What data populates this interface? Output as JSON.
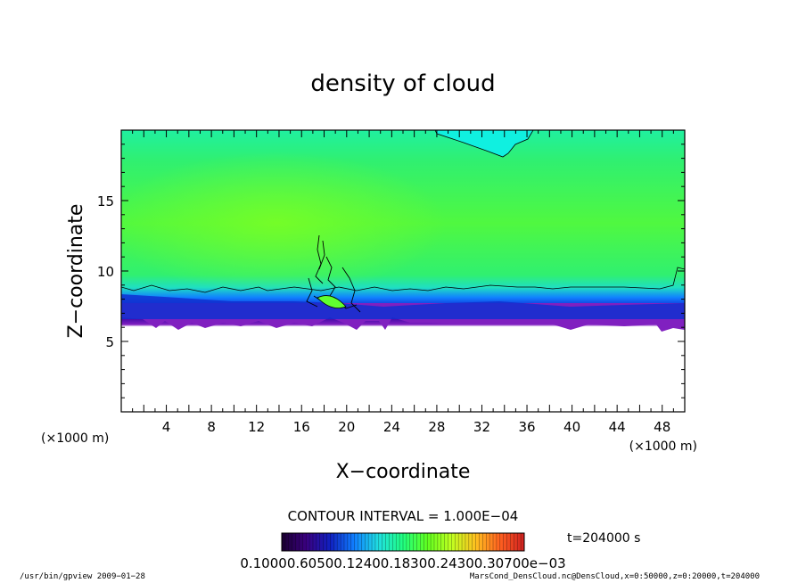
{
  "chart_data": {
    "type": "heatmap",
    "title": "density of cloud",
    "xlabel": "X−coordinate",
    "ylabel": "Z−coordinate",
    "x_unit": "(×1000 m)",
    "y_unit": "(×1000 m)",
    "xlim": [
      0,
      50
    ],
    "ylim": [
      0,
      20
    ],
    "x_ticks": [
      4,
      8,
      12,
      16,
      20,
      24,
      28,
      32,
      36,
      40,
      44,
      48
    ],
    "x_tick_labels": [
      "4",
      "8",
      "12",
      "16",
      "20",
      "24",
      "28",
      "32",
      "36",
      "40",
      "44",
      "48"
    ],
    "y_ticks": [
      5,
      10,
      15
    ],
    "y_tick_labels": [
      "5",
      "10",
      "15"
    ],
    "contour_interval_label": "CONTOUR INTERVAL = 1.000E−04",
    "colorbar_labels": "0.10000.60500.12400.18300.24300.30700e−03",
    "time_label": "t=204000  s",
    "colorbar_colors": [
      "#1a0030",
      "#3a0080",
      "#1020c0",
      "#1080ff",
      "#20e0e0",
      "#20ff80",
      "#60ff20",
      "#c0ff20",
      "#ffc020",
      "#ff6020",
      "#d02020"
    ],
    "field_colors": {
      "cloud_top_cyan": "#10f0e0",
      "upper_green": "#30f060",
      "core_green": "#60ff20",
      "band_cyan": "#40c0ff",
      "band_blue": "#1030e0",
      "band_darkblue": "#2000a0",
      "band_purple": "#8020c0"
    }
  },
  "footer": {
    "left": "/usr/bin/gpview  2009−01−28",
    "right": "MarsCond_DensCloud.nc@DensCloud,x=0:50000,z=0:20000,t=204000"
  }
}
